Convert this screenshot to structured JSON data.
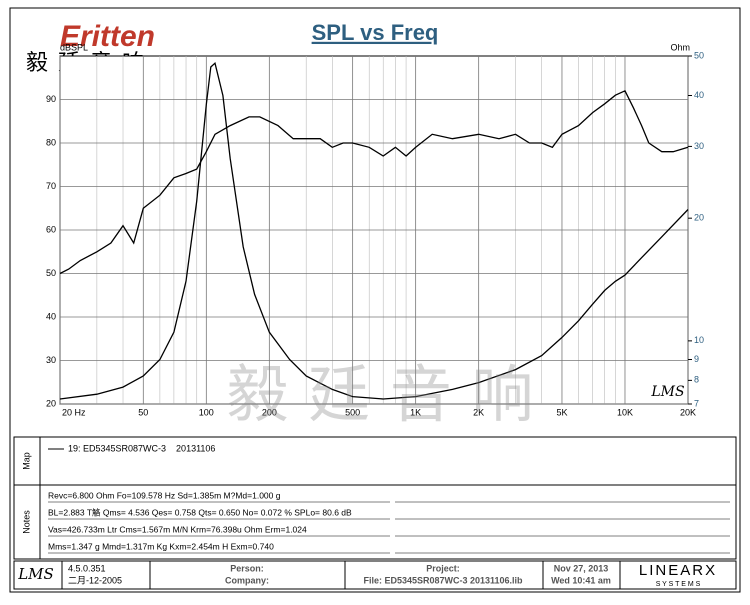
{
  "header": {
    "logo": "Eritten",
    "logo_cn": "毅廷音响",
    "watermark": "毅 廷 音 响"
  },
  "chart_data": {
    "type": "line",
    "title": "SPL vs Freq",
    "ylabel": "dBSPL",
    "y2label": "Ohm",
    "plot_mark": "LMS",
    "xscale": "log",
    "y2scale": "log",
    "grid": true,
    "xlim": [
      20,
      20000
    ],
    "ylim": [
      20,
      100
    ],
    "y2lim": [
      7,
      50
    ],
    "xticks": [
      {
        "value": 20,
        "label": "20 Hz"
      },
      50,
      100,
      200,
      500,
      {
        "value": 1000,
        "label": "1K"
      },
      {
        "value": 2000,
        "label": "2K"
      },
      {
        "value": 5000,
        "label": "5K"
      },
      {
        "value": 10000,
        "label": "10K"
      },
      {
        "value": 20000,
        "label": "20K"
      }
    ],
    "xgrid": [
      30,
      40,
      60,
      70,
      80,
      90,
      300,
      400,
      600,
      700,
      800,
      900,
      3000,
      4000,
      6000,
      7000,
      8000,
      9000
    ],
    "yticks": [
      20,
      30,
      40,
      50,
      60,
      70,
      80,
      90
    ],
    "y2ticks": [
      7,
      8,
      9,
      10,
      20,
      30,
      40,
      50
    ],
    "series": [
      {
        "name": "SPL",
        "color": "#000000",
        "axis": "y",
        "x": [
          20,
          22,
          25,
          30,
          35,
          40,
          45,
          50,
          60,
          70,
          80,
          90,
          100,
          110,
          130,
          160,
          180,
          220,
          260,
          300,
          350,
          400,
          450,
          500,
          600,
          700,
          800,
          900,
          1000,
          1200,
          1500,
          2000,
          2500,
          3000,
          3500,
          4000,
          4500,
          5000,
          6000,
          7000,
          8000,
          9000,
          10000,
          11000,
          12000,
          13000,
          15000,
          17000,
          20000
        ],
        "values": [
          50,
          51,
          53,
          55,
          57,
          61,
          57,
          65,
          68,
          72,
          73,
          74,
          78,
          82,
          84,
          86,
          86,
          84,
          81,
          81,
          81,
          79,
          80,
          80,
          79,
          77,
          79,
          77,
          79,
          82,
          81,
          82,
          81,
          82,
          80,
          80,
          79,
          82,
          84,
          87,
          89,
          91,
          92,
          88,
          84,
          80,
          78,
          78,
          79
        ]
      },
      {
        "name": "Impedance",
        "color": "#000000",
        "axis": "y2",
        "x": [
          20,
          30,
          40,
          50,
          60,
          70,
          80,
          90,
          100,
          105,
          110,
          120,
          130,
          150,
          170,
          200,
          250,
          300,
          400,
          500,
          700,
          1000,
          1500,
          2000,
          3000,
          4000,
          5000,
          6000,
          7000,
          8000,
          9000,
          10000,
          12000,
          15000,
          20000
        ],
        "values": [
          7.2,
          7.4,
          7.7,
          8.2,
          9,
          10.5,
          14,
          22,
          38,
          47,
          48,
          40,
          28,
          17,
          13,
          10.5,
          9,
          8.2,
          7.6,
          7.3,
          7.2,
          7.3,
          7.6,
          7.9,
          8.5,
          9.2,
          10.2,
          11.2,
          12.3,
          13.3,
          14,
          14.5,
          16,
          18,
          21
        ]
      }
    ]
  },
  "map": {
    "label": "Map",
    "legend": "19: ED5345SR087WC-3    20131106"
  },
  "notes": {
    "label": "Notes",
    "lines": [
      "Revc=6.800 Ohm  Fo=109.578 Hz  Sd=1.385m M?Md=1.000 g",
      "BL=2.883 T觡  Qms= 4.536  Qes= 0.758  Qts= 0.650  No= 0.072 %  SPLo= 80.6 dB",
      "Vas=426.733m Ltr  Cms=1.567m M/N  Krm=76.398u Ohm  Erm=1.024",
      "Mms=1.347 g  Mmd=1.317m Kg  Kxm=2.454m H  Exm=0.740"
    ]
  },
  "footer": {
    "logo": "LMS",
    "version": "4.5.0.351",
    "date_built": "二月-12-2005",
    "person": "Person:",
    "company": "Company:",
    "project": "Project:",
    "file": "File: ED5345SR087WC-3 20131106.lib",
    "date": "Nov 27, 2013",
    "time": "Wed 10:41 am",
    "brand": "LINEARX",
    "brand_sub": "S Y S T E M S"
  }
}
